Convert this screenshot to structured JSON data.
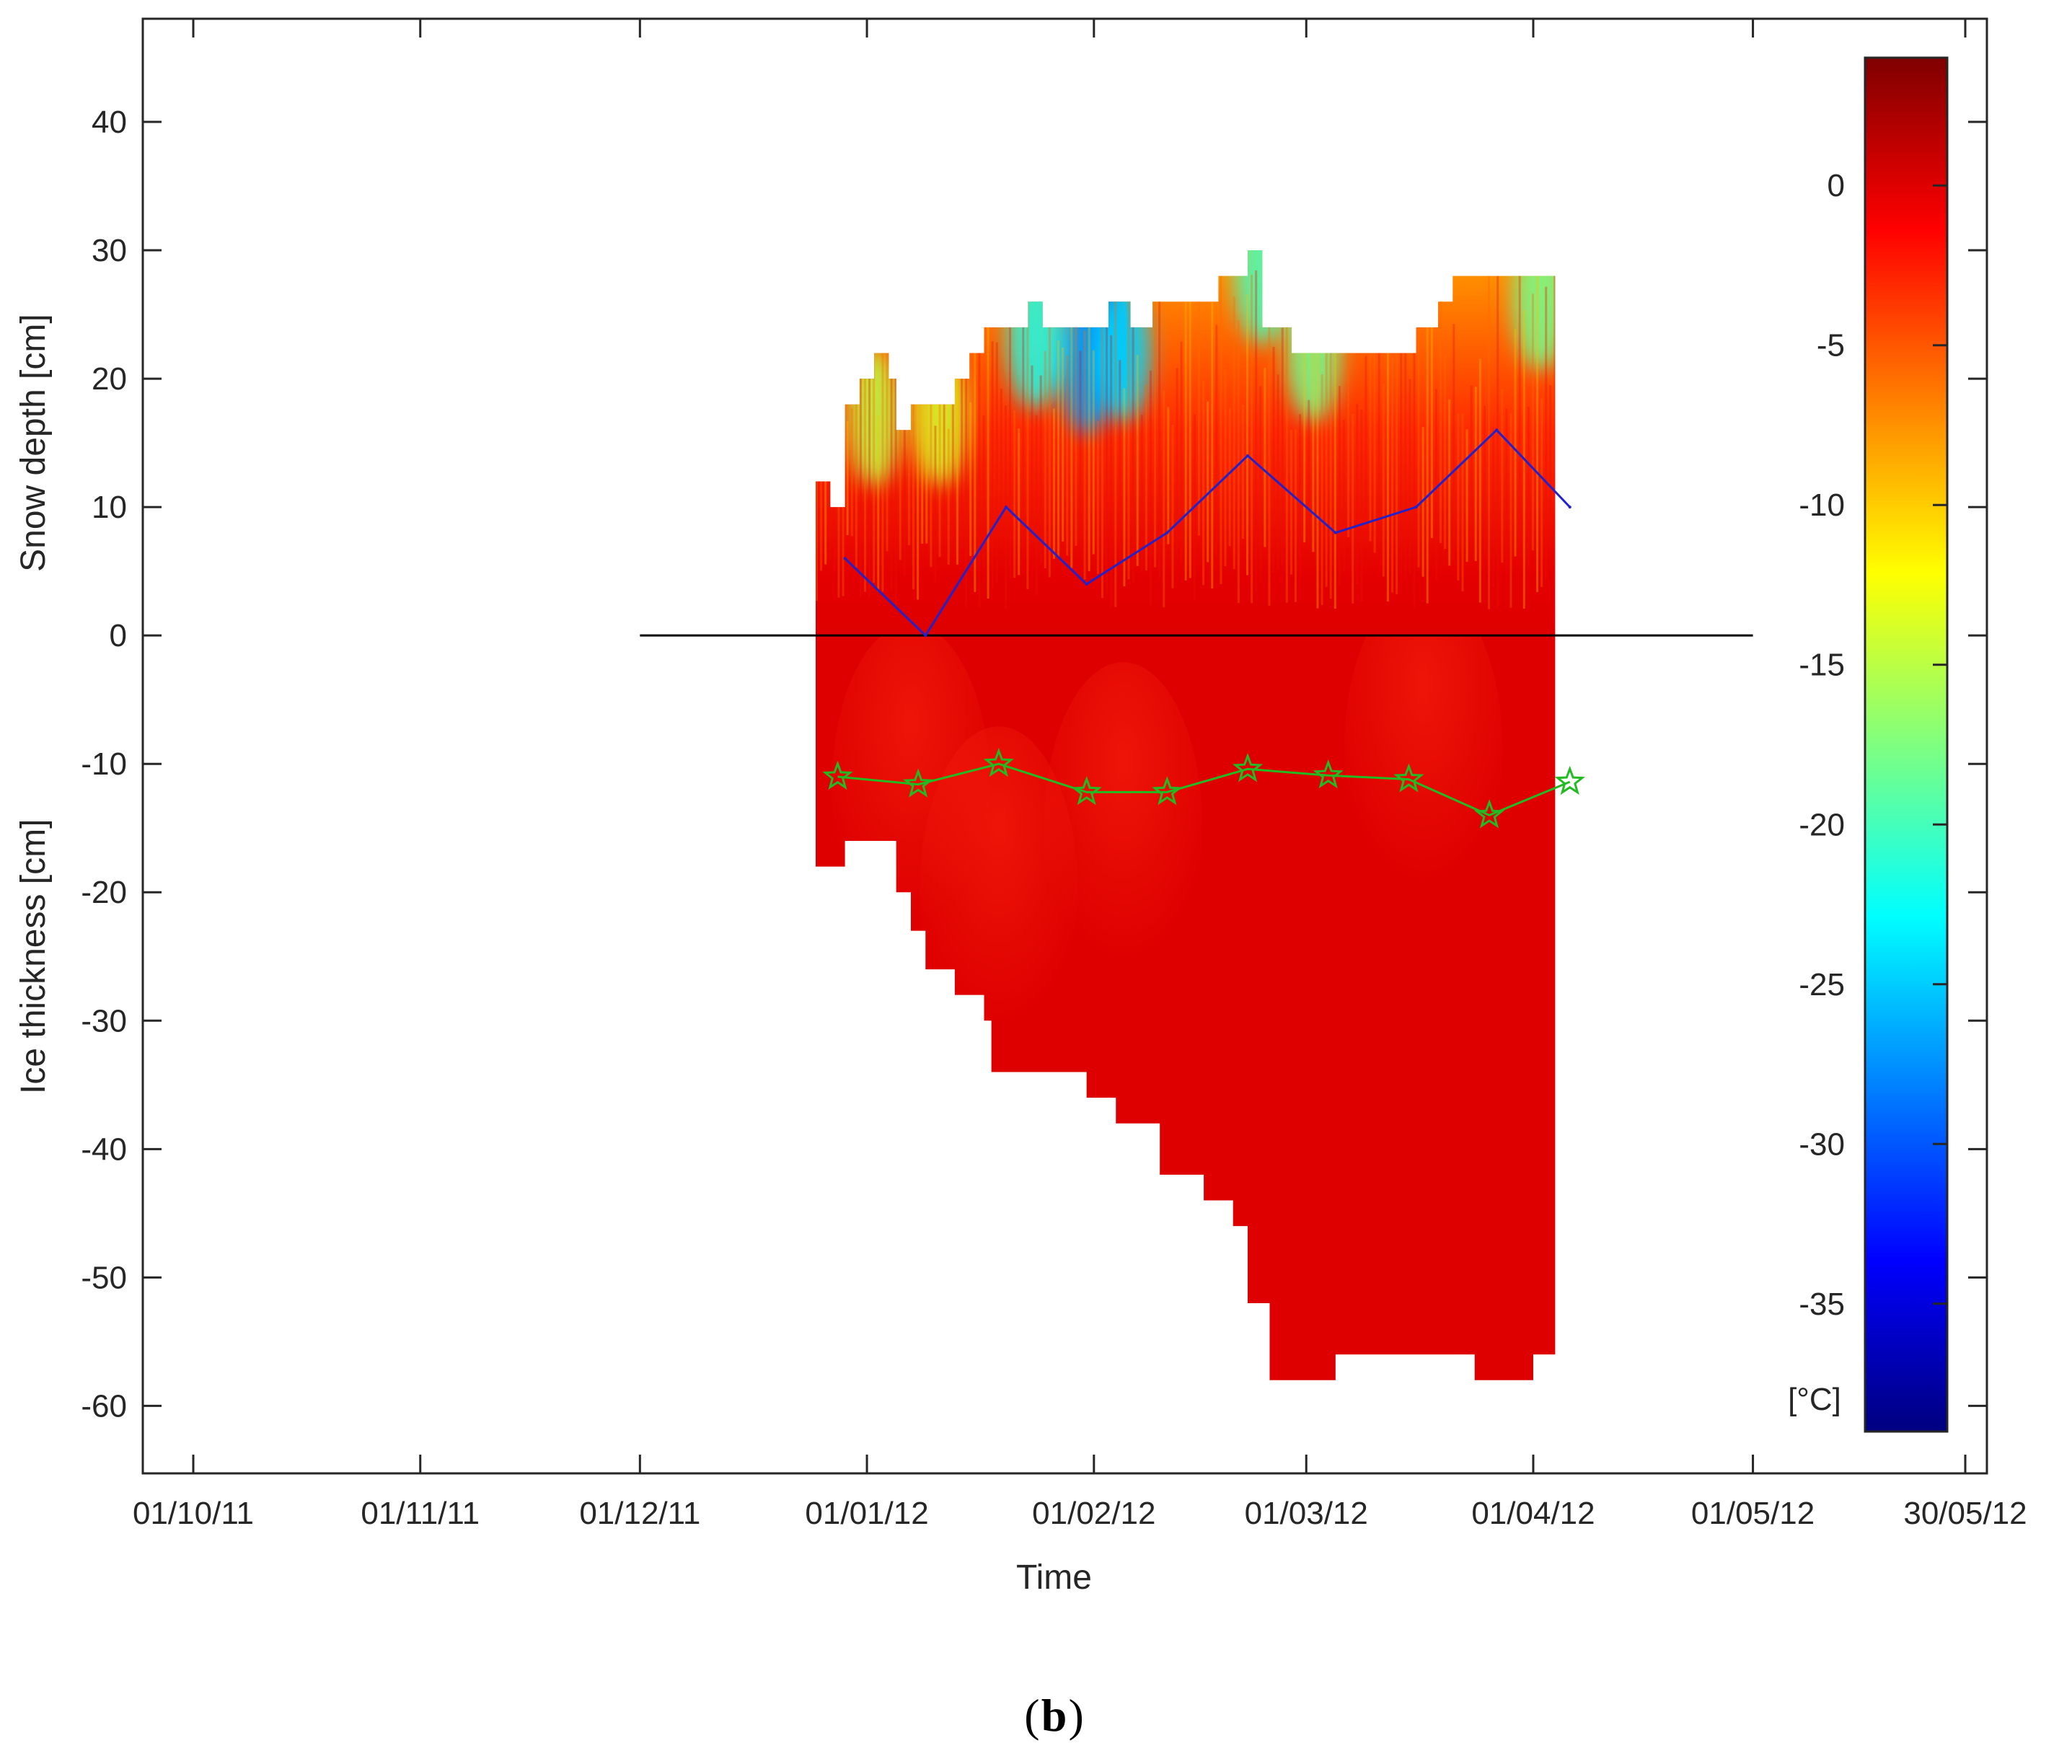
{
  "colors": {
    "snow_line": "#2222cc",
    "ice_line": "#22bb22",
    "zero_line": "#000000",
    "ice_fill": "#de0000"
  },
  "chart_data": {
    "type": "heatmap",
    "title": "",
    "xlabel": "Time",
    "ylabel_top": "Snow depth [cm]",
    "ylabel_bottom": "Ice thickness [cm]",
    "ylim": [
      -62,
      45
    ],
    "yticks": [
      40,
      30,
      20,
      10,
      0,
      -10,
      -20,
      -30,
      -40,
      -50,
      -60
    ],
    "xlim_days": [
      0,
      242
    ],
    "xticks": [
      {
        "day": 0,
        "label": "01/10/11"
      },
      {
        "day": 31,
        "label": "01/11/11"
      },
      {
        "day": 61,
        "label": "01/12/11"
      },
      {
        "day": 92,
        "label": "01/01/12"
      },
      {
        "day": 123,
        "label": "01/02/12"
      },
      {
        "day": 152,
        "label": "01/03/12"
      },
      {
        "day": 183,
        "label": "01/04/12"
      },
      {
        "day": 213,
        "label": "01/05/12"
      },
      {
        "day": 242,
        "label": "30/05/12"
      }
    ],
    "colorbar": {
      "range": [
        -39,
        4
      ],
      "ticks": [
        0,
        -5,
        -10,
        -15,
        -20,
        -25,
        -30,
        -35
      ],
      "unit": "[°C]",
      "colormap": "jet"
    },
    "zero_line": {
      "x_start_day": 61,
      "x_end_day": 213,
      "y": 0
    },
    "series": [
      {
        "name": "Snow depth",
        "x_days": [
          89,
          100,
          111,
          122,
          133,
          144,
          156,
          167,
          178,
          188
        ],
        "values": [
          6,
          0,
          10,
          4,
          8,
          14,
          8,
          10,
          16,
          10
        ]
      },
      {
        "name": "Ice thickness",
        "marker": "star",
        "x_days": [
          88,
          99,
          110,
          122,
          133,
          144,
          155,
          166,
          177,
          188
        ],
        "values": [
          -11,
          -11.6,
          -10,
          -12.2,
          -12.2,
          -10.4,
          -10.9,
          -11.2,
          -14,
          -11.4
        ]
      }
    ],
    "snow_surface": {
      "x_days": [
        85,
        87,
        87,
        89,
        89,
        91,
        91,
        93,
        93,
        95,
        95,
        96,
        96,
        98,
        98,
        100,
        100,
        104,
        104,
        106,
        106,
        108,
        108,
        114,
        114,
        116,
        116,
        125,
        125,
        128,
        128,
        131,
        131,
        140,
        140,
        144,
        144,
        146,
        146,
        150,
        150,
        157,
        157,
        167,
        167,
        170,
        170,
        172,
        172,
        186,
        186
      ],
      "values": [
        12,
        12,
        10,
        10,
        18,
        18,
        20,
        20,
        22,
        22,
        20,
        20,
        16,
        16,
        18,
        18,
        18,
        18,
        20,
        20,
        22,
        22,
        24,
        24,
        26,
        26,
        24,
        24,
        26,
        26,
        24,
        24,
        26,
        26,
        28,
        28,
        30,
        30,
        24,
        24,
        22,
        22,
        22,
        22,
        24,
        24,
        26,
        26,
        28,
        28,
        28
      ]
    },
    "ice_bottom": {
      "x_days": [
        85,
        89,
        89,
        96,
        96,
        98,
        98,
        100,
        100,
        104,
        104,
        108,
        108,
        109,
        109,
        113,
        113,
        122,
        122,
        126,
        126,
        132,
        132,
        138,
        138,
        142,
        142,
        144,
        144,
        147,
        147,
        156,
        156,
        175,
        175,
        183,
        183,
        186
      ],
      "values": [
        -18,
        -18,
        -16,
        -16,
        -20,
        -20,
        -23,
        -23,
        -26,
        -26,
        -28,
        -28,
        -30,
        -30,
        -34,
        -34,
        -34,
        -34,
        -36,
        -36,
        -38,
        -38,
        -42,
        -42,
        -44,
        -44,
        -46,
        -46,
        -52,
        -52,
        -58,
        -58,
        -56,
        -56,
        -58,
        -58,
        -56,
        -56
      ]
    },
    "cold_patches": [
      {
        "x_day": 125,
        "y": 23,
        "temp": -35
      },
      {
        "x_day": 122,
        "y": 21,
        "temp": -27
      },
      {
        "x_day": 127,
        "y": 22,
        "temp": -24
      },
      {
        "x_day": 115,
        "y": 23,
        "temp": -22
      },
      {
        "x_day": 146,
        "y": 28,
        "temp": -20
      },
      {
        "x_day": 153,
        "y": 22,
        "temp": -18
      },
      {
        "x_day": 184,
        "y": 26,
        "temp": -18
      },
      {
        "x_day": 93,
        "y": 17,
        "temp": -15
      },
      {
        "x_day": 102,
        "y": 17,
        "temp": -14
      }
    ]
  },
  "caption": {
    "letter": "b",
    "open": "(",
    "close": ")"
  }
}
